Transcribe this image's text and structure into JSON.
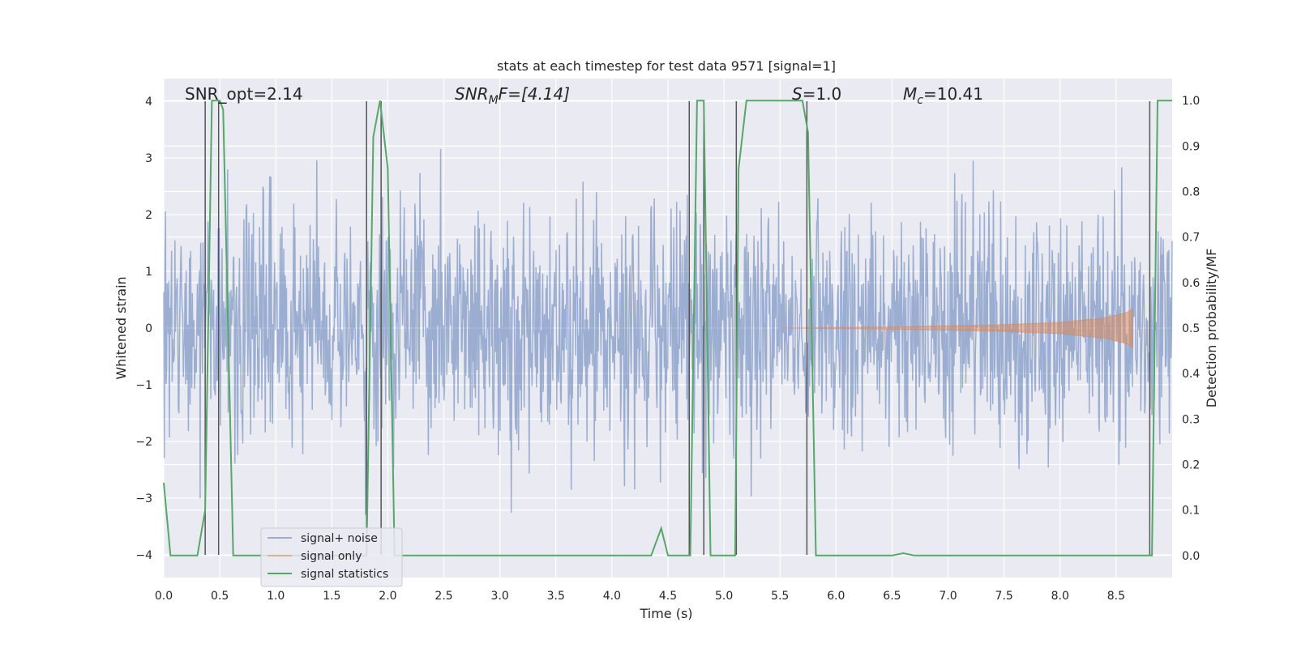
{
  "chart_data": {
    "type": "line",
    "title": "stats at each timestep for test data 9571 [signal=1]",
    "xlabel": "Time (s)",
    "ylabel": "Whitened strain",
    "ylabel_right": "Detection probability/MF",
    "xlim": [
      0.0,
      9.0
    ],
    "ylim": [
      -4.4,
      4.4
    ],
    "ylim_right": [
      -0.0484,
      1.0484
    ],
    "x_ticks": [
      0.0,
      0.5,
      1.0,
      1.5,
      2.0,
      2.5,
      3.0,
      3.5,
      4.0,
      4.5,
      5.0,
      5.5,
      6.0,
      6.5,
      7.0,
      7.5,
      8.0,
      8.5
    ],
    "x_tick_labels": [
      "0.0",
      "0.5",
      "1.0",
      "1.5",
      "2.0",
      "2.5",
      "3.0",
      "3.5",
      "4.0",
      "4.5",
      "5.0",
      "5.5",
      "6.0",
      "6.5",
      "7.0",
      "7.5",
      "8.0",
      "8.5"
    ],
    "y_ticks": [
      -4,
      -3,
      -2,
      -1,
      0,
      1,
      2,
      3,
      4
    ],
    "y_tick_labels": [
      "−4",
      "−3",
      "−2",
      "−1",
      "0",
      "1",
      "2",
      "3",
      "4"
    ],
    "y_ticks_right": [
      0.0,
      0.1,
      0.2,
      0.3,
      0.4,
      0.5,
      0.6,
      0.7,
      0.8,
      0.9,
      1.0
    ],
    "y_tick_labels_right": [
      "0.0",
      "0.1",
      "0.2",
      "0.3",
      "0.4",
      "0.5",
      "0.6",
      "0.7",
      "0.8",
      "0.9",
      "1.0"
    ],
    "grid": true,
    "legend_position": "bottom-left",
    "annotations": {
      "snr_opt": "SNR_opt=2.14",
      "snr_mf_main": "SNR",
      "snr_mf_sub": "M",
      "snr_mf_rest": "F=[4.14]",
      "s_main": "S",
      "s_rest": "=1.0",
      "mc_main": "M",
      "mc_sub": "c",
      "mc_rest": "=10.41"
    },
    "series": [
      {
        "name": "signal+ noise",
        "color": "#4c72b0",
        "style": "dense noise band, amplitude roughly ±2 with spikes to ±4",
        "noise_seed": 9571,
        "samples": 1800
      },
      {
        "name": "signal only",
        "color": "#dd8452",
        "style": "chirp, amplitude growing from 0 toward ±0.35 near t≈8.65",
        "envelope": {
          "t": [
            5.5,
            6.5,
            7.5,
            8.0,
            8.4,
            8.6,
            8.65
          ],
          "amp": [
            0.0,
            0.02,
            0.06,
            0.1,
            0.18,
            0.28,
            0.35
          ]
        }
      },
      {
        "name": "signal statistics",
        "color": "#55a868",
        "axis": "right",
        "x": [
          0.0,
          0.06,
          0.12,
          0.3,
          0.37,
          0.43,
          0.5,
          0.53,
          0.62,
          0.7,
          1.5,
          1.81,
          1.87,
          1.93,
          2.0,
          2.06,
          3.5,
          4.35,
          4.44,
          4.5,
          4.65,
          4.7,
          4.76,
          4.82,
          4.88,
          4.95,
          5.05,
          5.1,
          5.13,
          5.2,
          5.7,
          5.75,
          5.82,
          6.0,
          6.5,
          6.6,
          6.7,
          7.0,
          7.5,
          8.0,
          8.78,
          8.82,
          8.87,
          8.9,
          9.0
        ],
        "y": [
          0.16,
          0.0,
          0.0,
          0.0,
          0.1,
          1.0,
          1.0,
          0.98,
          0.0,
          0.0,
          0.0,
          0.0,
          0.92,
          1.0,
          0.85,
          0.0,
          0.0,
          0.0,
          0.06,
          0.0,
          0.0,
          0.0,
          1.0,
          1.0,
          0.0,
          0.0,
          0.0,
          0.0,
          0.85,
          1.0,
          1.0,
          0.93,
          0.0,
          0.0,
          0.0,
          0.005,
          0.0,
          0.0,
          0.0,
          0.0,
          0.0,
          0.0,
          1.0,
          1.0,
          1.0
        ]
      }
    ],
    "vlines": {
      "color": "#555555",
      "x": [
        0.37,
        0.49,
        1.81,
        1.94,
        4.69,
        4.82,
        5.11,
        5.74,
        8.8
      ]
    }
  }
}
